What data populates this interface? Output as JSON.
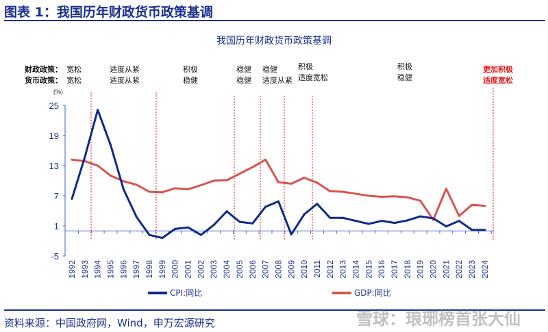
{
  "figure_title": "图表 1：我国历年财政货币政策基调",
  "source": "资料来源：中国政府网，Wind，申万宏源研究",
  "watermark": "雪球：琅琊榜首张大仙",
  "policy": {
    "fiscal_header": "财政政策：",
    "monetary_header": "货币政策：",
    "periods": [
      {
        "fiscal": "宽松",
        "monetary": "宽松"
      },
      {
        "fiscal": "适度从紧",
        "monetary": "适度从紧"
      },
      {
        "fiscal": "积极",
        "monetary": "稳健"
      },
      {
        "fiscal": "稳健",
        "monetary": "稳健"
      },
      {
        "fiscal": "稳健",
        "monetary": "适度从紧"
      },
      {
        "fiscal": "积极",
        "monetary": "适度宽松"
      },
      {
        "fiscal": "积极",
        "monetary": "稳健"
      },
      {
        "fiscal": "更加积极",
        "monetary": "适度宽松"
      }
    ],
    "highlight_color": "#e8191d"
  },
  "chart_data": {
    "type": "line",
    "title": "我国历年财政货币政策基调",
    "ylabel": "(%)",
    "ylim": [
      -5,
      25
    ],
    "yticks": [
      25,
      19,
      13,
      7,
      1,
      -5
    ],
    "grid": false,
    "legend_position": "bottom",
    "x": [
      "1992",
      "1993",
      "1994",
      "1995",
      "1996",
      "1997",
      "1998",
      "1999",
      "2000",
      "2001",
      "2002",
      "2003",
      "2004",
      "2005",
      "2006",
      "2007",
      "2008",
      "2009",
      "2010",
      "2011",
      "2012",
      "2013",
      "2014",
      "2015",
      "2016",
      "2017",
      "2018",
      "2019",
      "2020",
      "2021",
      "2022",
      "2023",
      "2024"
    ],
    "series": [
      {
        "name": "CPI:同比",
        "color": "#0d2a8a",
        "values": [
          6.4,
          14.7,
          24.1,
          17.1,
          8.3,
          2.8,
          -0.8,
          -1.4,
          0.4,
          0.7,
          -0.8,
          1.2,
          3.9,
          1.8,
          1.5,
          4.8,
          5.9,
          -0.7,
          3.3,
          5.4,
          2.6,
          2.6,
          2.0,
          1.4,
          2.0,
          1.6,
          2.1,
          2.9,
          2.5,
          0.9,
          2.0,
          0.2,
          0.2
        ]
      },
      {
        "name": "GDP:同比",
        "color": "#d9534f",
        "values": [
          14.2,
          13.9,
          13.0,
          11.0,
          9.9,
          9.2,
          7.8,
          7.7,
          8.5,
          8.3,
          9.1,
          10.0,
          10.1,
          11.4,
          12.7,
          14.2,
          9.7,
          9.4,
          10.6,
          9.6,
          7.9,
          7.8,
          7.4,
          7.0,
          6.8,
          6.9,
          6.7,
          6.0,
          2.2,
          8.4,
          3.0,
          5.2,
          5.0
        ]
      }
    ],
    "policy_breaks": [
      "1993-1994",
      "1998-1999",
      "2004-2005",
      "2006-2007",
      "2008-2009",
      "2010-2011",
      "2024-2025"
    ]
  }
}
